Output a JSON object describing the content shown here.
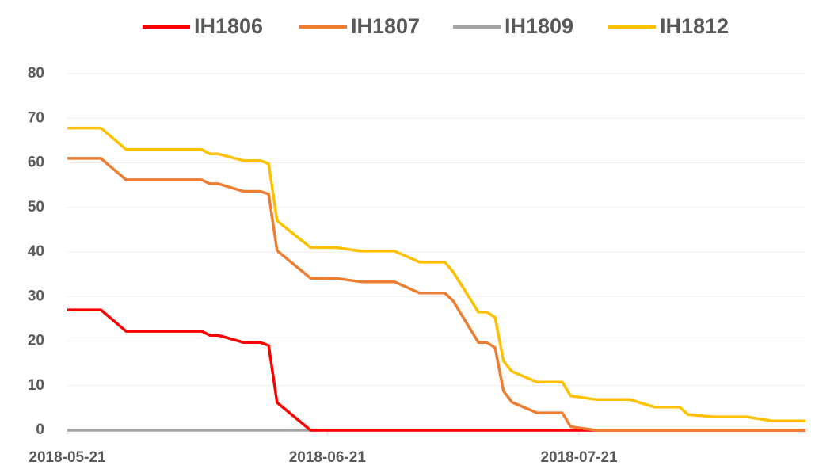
{
  "chart_data": {
    "type": "line",
    "x": [
      "2018-05-21",
      "2018-05-25",
      "2018-05-28",
      "2018-06-06",
      "2018-06-07",
      "2018-06-08",
      "2018-06-11",
      "2018-06-13",
      "2018-06-14",
      "2018-06-15",
      "2018-06-19",
      "2018-06-22",
      "2018-06-25",
      "2018-06-29",
      "2018-07-02",
      "2018-07-05",
      "2018-07-06",
      "2018-07-09",
      "2018-07-10",
      "2018-07-11",
      "2018-07-12",
      "2018-07-13",
      "2018-07-16",
      "2018-07-19",
      "2018-07-20",
      "2018-07-23",
      "2018-07-27",
      "2018-07-30",
      "2018-08-02",
      "2018-08-03",
      "2018-08-06",
      "2018-08-10",
      "2018-08-13",
      "2018-08-17"
    ],
    "series": [
      {
        "name": "IH1806",
        "color": "#ff0000",
        "values": [
          27,
          27,
          22.2,
          22.2,
          21.3,
          21.3,
          19.7,
          19.7,
          19,
          6.2,
          0,
          0,
          0,
          0,
          0,
          0,
          0,
          0,
          0,
          0,
          0,
          0,
          0,
          0,
          0,
          0,
          0,
          0,
          0,
          0,
          0,
          0,
          0,
          0
        ]
      },
      {
        "name": "IH1807",
        "color": "#ed7d31",
        "values": [
          61,
          61,
          56.2,
          56.2,
          55.3,
          55.3,
          53.6,
          53.6,
          53,
          40.3,
          34.1,
          34.1,
          33.3,
          33.3,
          30.8,
          30.8,
          29,
          19.7,
          19.7,
          18.5,
          8.8,
          6.3,
          3.9,
          3.9,
          0.8,
          0,
          0,
          0,
          0,
          0,
          0,
          0,
          0,
          0
        ]
      },
      {
        "name": "IH1809",
        "color": "#a5a5a5",
        "values": [
          0,
          0,
          0,
          0,
          0,
          0,
          0,
          0,
          0,
          0,
          0,
          0,
          0,
          0,
          0,
          0,
          0,
          0,
          0,
          0,
          0,
          0,
          0,
          0,
          0,
          0,
          0,
          0,
          0,
          0,
          0,
          0,
          0,
          0
        ]
      },
      {
        "name": "IH1812",
        "color": "#ffc000",
        "values": [
          67.8,
          67.8,
          63,
          63,
          62,
          62,
          60.5,
          60.5,
          59.8,
          47,
          41,
          41,
          40.2,
          40.2,
          37.7,
          37.7,
          35.5,
          26.5,
          26.5,
          25.3,
          15.5,
          13.2,
          10.8,
          10.8,
          7.7,
          6.9,
          6.9,
          5.2,
          5.2,
          3.5,
          3,
          3,
          2.1,
          2.1
        ]
      }
    ],
    "xlim": [
      "2018-05-21",
      "2018-08-17"
    ],
    "xticks": [
      "2018-05-21",
      "2018-06-21",
      "2018-07-21"
    ],
    "ylim": [
      0,
      80
    ],
    "yticks": [
      0,
      10,
      20,
      30,
      40,
      50,
      60,
      70,
      80
    ],
    "grid": true,
    "legend": "top"
  }
}
